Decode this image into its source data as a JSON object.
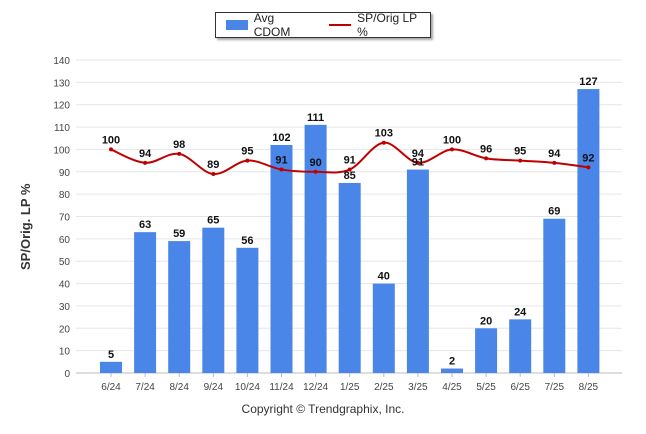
{
  "legend": {
    "bar_label": "Avg CDOM",
    "line_label": "SP/Orig LP %"
  },
  "footer": "Copyright © Trendgraphix, Inc.",
  "colors": {
    "bar": "#4a86e8",
    "line": "#c00000",
    "grid": "#e6e6e6"
  },
  "chart_data": {
    "type": "bar",
    "categories": [
      "6/24",
      "7/24",
      "8/24",
      "9/24",
      "10/24",
      "11/24",
      "12/24",
      "1/25",
      "2/25",
      "3/25",
      "4/25",
      "5/25",
      "6/25",
      "7/25",
      "8/25"
    ],
    "series": [
      {
        "name": "Avg CDOM",
        "type": "bar",
        "values": [
          5,
          63,
          59,
          65,
          56,
          102,
          111,
          85,
          40,
          91,
          2,
          20,
          24,
          69,
          127
        ]
      },
      {
        "name": "SP/Orig LP %",
        "type": "line",
        "values": [
          100,
          94,
          98,
          89,
          95,
          91,
          90,
          91,
          103,
          94,
          100,
          96,
          95,
          94,
          92
        ]
      }
    ],
    "ylabel": "SP/Orig. LP %",
    "ylim": [
      0,
      140
    ],
    "yticks": [
      0,
      10,
      20,
      30,
      40,
      50,
      60,
      70,
      80,
      90,
      100,
      110,
      120,
      130,
      140
    ],
    "grid": true,
    "legend_position": "top-center"
  }
}
